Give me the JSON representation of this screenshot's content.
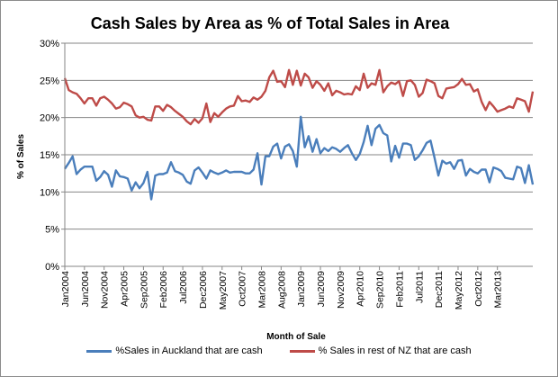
{
  "chart_data": {
    "type": "line",
    "title": "Cash Sales by Area as % of Total Sales in Area",
    "xlabel": "Month of Sale",
    "ylabel": "% of Sales",
    "ylim": [
      0,
      30
    ],
    "y_ticks": [
      "0%",
      "5%",
      "10%",
      "15%",
      "20%",
      "25%",
      "30%"
    ],
    "x_tick_labels": [
      "Jan2004",
      "Jun2004",
      "Nov2004",
      "Apr2005",
      "Sep2005",
      "Feb2006",
      "Jul2006",
      "Dec2006",
      "May2007",
      "Oct2007",
      "Mar2008",
      "Aug2008",
      "Jan2009",
      "Jun2009",
      "Nov2009",
      "Apr2010",
      "Sep2010",
      "Feb2011",
      "Jul2011",
      "Dec2011",
      "May2012",
      "Oct2012",
      "Mar2013"
    ],
    "x_start": "2004-01",
    "x_end": "2013-05",
    "grid": "horizontal",
    "legend_position": "bottom",
    "series": [
      {
        "name": "%Sales in Auckland that are cash",
        "color": "#4a7ebb",
        "values": [
          13.1,
          13.9,
          14.8,
          12.4,
          13.0,
          13.4,
          13.4,
          13.4,
          11.5,
          12.0,
          12.8,
          12.3,
          10.7,
          12.9,
          12.1,
          12.0,
          11.8,
          10.2,
          11.3,
          10.5,
          11.2,
          12.7,
          9.0,
          12.2,
          12.4,
          12.4,
          12.6,
          14.0,
          12.8,
          12.6,
          12.3,
          11.4,
          11.1,
          12.9,
          13.3,
          12.6,
          11.8,
          12.9,
          12.6,
          12.4,
          12.6,
          12.9,
          12.6,
          12.7,
          12.7,
          12.7,
          12.5,
          12.5,
          13.0,
          15.2,
          11.0,
          14.8,
          14.8,
          16.1,
          16.5,
          14.5,
          16.1,
          16.4,
          15.5,
          13.4,
          20.1,
          16.0,
          17.5,
          15.4,
          17.1,
          15.2,
          15.9,
          15.5,
          16.0,
          15.8,
          15.4,
          15.9,
          16.3,
          15.2,
          14.3,
          15.1,
          16.7,
          18.9,
          16.3,
          18.5,
          19.0,
          17.9,
          17.6,
          14.1,
          16.2,
          14.6,
          16.5,
          16.5,
          16.3,
          14.3,
          14.8,
          15.6,
          16.6,
          16.9,
          14.6,
          12.2,
          14.2,
          13.8,
          14.0,
          13.1,
          14.2,
          14.3,
          12.2,
          13.1,
          12.7,
          12.5,
          13.0,
          13.0,
          11.3,
          13.3,
          13.1,
          12.8,
          11.9,
          11.8,
          11.7,
          13.4,
          13.2,
          11.2,
          13.6,
          11.0
        ]
      },
      {
        "name": "% Sales in rest of NZ that are cash",
        "color": "#be4b48",
        "values": [
          25.3,
          23.7,
          23.4,
          23.2,
          22.6,
          21.9,
          22.6,
          22.6,
          21.6,
          22.6,
          22.8,
          22.4,
          21.9,
          21.2,
          21.4,
          22.0,
          21.8,
          21.5,
          20.3,
          20.0,
          20.1,
          19.7,
          19.6,
          21.5,
          21.5,
          20.9,
          21.7,
          21.4,
          20.9,
          20.5,
          20.1,
          19.5,
          19.1,
          19.8,
          19.3,
          19.9,
          21.9,
          19.4,
          20.6,
          20.1,
          20.7,
          21.2,
          21.5,
          21.6,
          22.9,
          22.2,
          22.3,
          22.1,
          22.7,
          22.4,
          22.8,
          23.6,
          25.4,
          26.3,
          24.8,
          24.9,
          24.1,
          26.4,
          24.4,
          26.3,
          24.3,
          25.9,
          25.4,
          24.0,
          24.9,
          24.4,
          23.6,
          24.6,
          23.0,
          23.6,
          23.4,
          23.1,
          23.2,
          23.1,
          24.2,
          23.7,
          25.9,
          24.0,
          24.6,
          24.4,
          26.4,
          23.4,
          24.2,
          24.7,
          24.5,
          24.9,
          22.9,
          24.9,
          25.0,
          24.4,
          22.8,
          23.3,
          25.1,
          24.9,
          24.6,
          22.9,
          22.6,
          23.9,
          24.0,
          24.1,
          24.5,
          25.2,
          24.4,
          24.5,
          23.5,
          23.8,
          22.1,
          21.0,
          22.1,
          21.5,
          20.8,
          21.0,
          21.2,
          21.5,
          21.3,
          22.6,
          22.4,
          22.2,
          20.8,
          23.5
        ]
      }
    ]
  }
}
